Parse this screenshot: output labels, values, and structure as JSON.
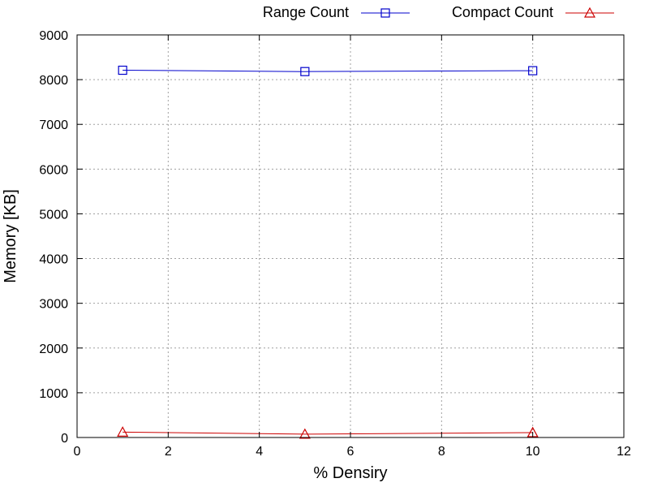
{
  "chart_data": {
    "type": "line",
    "title": "",
    "xlabel": "% Densiry",
    "ylabel": "Memory [KB]",
    "xlim": [
      0,
      12
    ],
    "ylim": [
      0,
      9000
    ],
    "xticks": [
      0,
      2,
      4,
      6,
      8,
      10,
      12
    ],
    "yticks": [
      0,
      1000,
      2000,
      3000,
      4000,
      5000,
      6000,
      7000,
      8000,
      9000
    ],
    "grid": true,
    "legend_position": "top-right, outside plot",
    "series": [
      {
        "name": "Range Count",
        "color": "#0000cc",
        "marker": "square",
        "x": [
          1,
          5,
          10
        ],
        "y": [
          8210,
          8180,
          8200
        ]
      },
      {
        "name": "Compact Count",
        "color": "#cc0000",
        "marker": "triangle",
        "x": [
          1,
          5,
          10
        ],
        "y": [
          120,
          75,
          110
        ]
      }
    ]
  }
}
